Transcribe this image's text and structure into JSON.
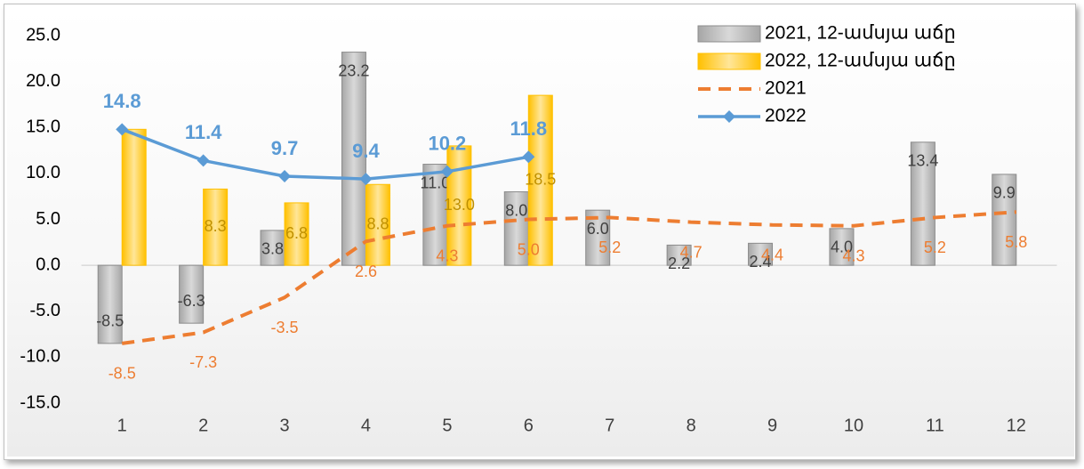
{
  "chart_data": {
    "type": "combo",
    "categories": [
      "1",
      "2",
      "3",
      "4",
      "5",
      "6",
      "7",
      "8",
      "9",
      "10",
      "11",
      "12"
    ],
    "series": [
      {
        "name": "2021, 12-ամսյա աճը",
        "type": "bar",
        "color": "#bfbfbf",
        "values": [
          -8.5,
          -6.3,
          3.8,
          23.2,
          11.0,
          8.0,
          6.0,
          2.2,
          2.4,
          4.0,
          13.4,
          9.9
        ],
        "value_labels": [
          "-8.5",
          "-6.3",
          "3.8",
          "23.2",
          "11.0",
          "8.0",
          "6.0",
          "2.2",
          "2.4",
          "4.0",
          "13.4",
          "9.9"
        ]
      },
      {
        "name": "2022, 12-ամսյա աճը",
        "type": "bar",
        "color": "#ffd966",
        "values": [
          14.8,
          8.3,
          6.8,
          8.8,
          13.0,
          18.5,
          null,
          null,
          null,
          null,
          null,
          null
        ],
        "value_labels": [
          null,
          "8.3",
          "6.8",
          "8.8",
          "13.0",
          "18.5",
          null,
          null,
          null,
          null,
          null,
          null
        ]
      },
      {
        "name": "2021",
        "type": "line",
        "color": "#ed7d31",
        "dash": true,
        "values": [
          -8.5,
          -7.3,
          -3.5,
          2.6,
          4.3,
          5.0,
          5.2,
          4.7,
          4.4,
          4.3,
          5.2,
          5.8
        ],
        "value_labels": [
          "-8.5",
          "-7.3",
          "-3.5",
          "2.6",
          "4.3",
          "5.0",
          "5.2",
          "4.7",
          "4.4",
          "4.3",
          "5.2",
          "5.8"
        ]
      },
      {
        "name": "2022",
        "type": "line",
        "color": "#5b9bd5",
        "marker": "diamond",
        "values": [
          14.8,
          11.4,
          9.7,
          9.4,
          10.2,
          11.8,
          null,
          null,
          null,
          null,
          null,
          null
        ],
        "value_labels": [
          "14.8",
          "11.4",
          "9.7",
          "9.4",
          "10.2",
          "11.8",
          null,
          null,
          null,
          null,
          null,
          null
        ]
      }
    ],
    "ylim": [
      -15,
      27
    ],
    "yticks": [
      {
        "value": -15,
        "label": "-15.0"
      },
      {
        "value": -10,
        "label": "-10.0"
      },
      {
        "value": -5,
        "label": "-5.0"
      },
      {
        "value": 0,
        "label": "0.0"
      },
      {
        "value": 5,
        "label": "5.0"
      },
      {
        "value": 10,
        "label": "10.0"
      },
      {
        "value": 15,
        "label": "15.0"
      },
      {
        "value": 20,
        "label": "20.0"
      },
      {
        "value": 25,
        "label": "25.0"
      }
    ],
    "legend": "top-right"
  }
}
